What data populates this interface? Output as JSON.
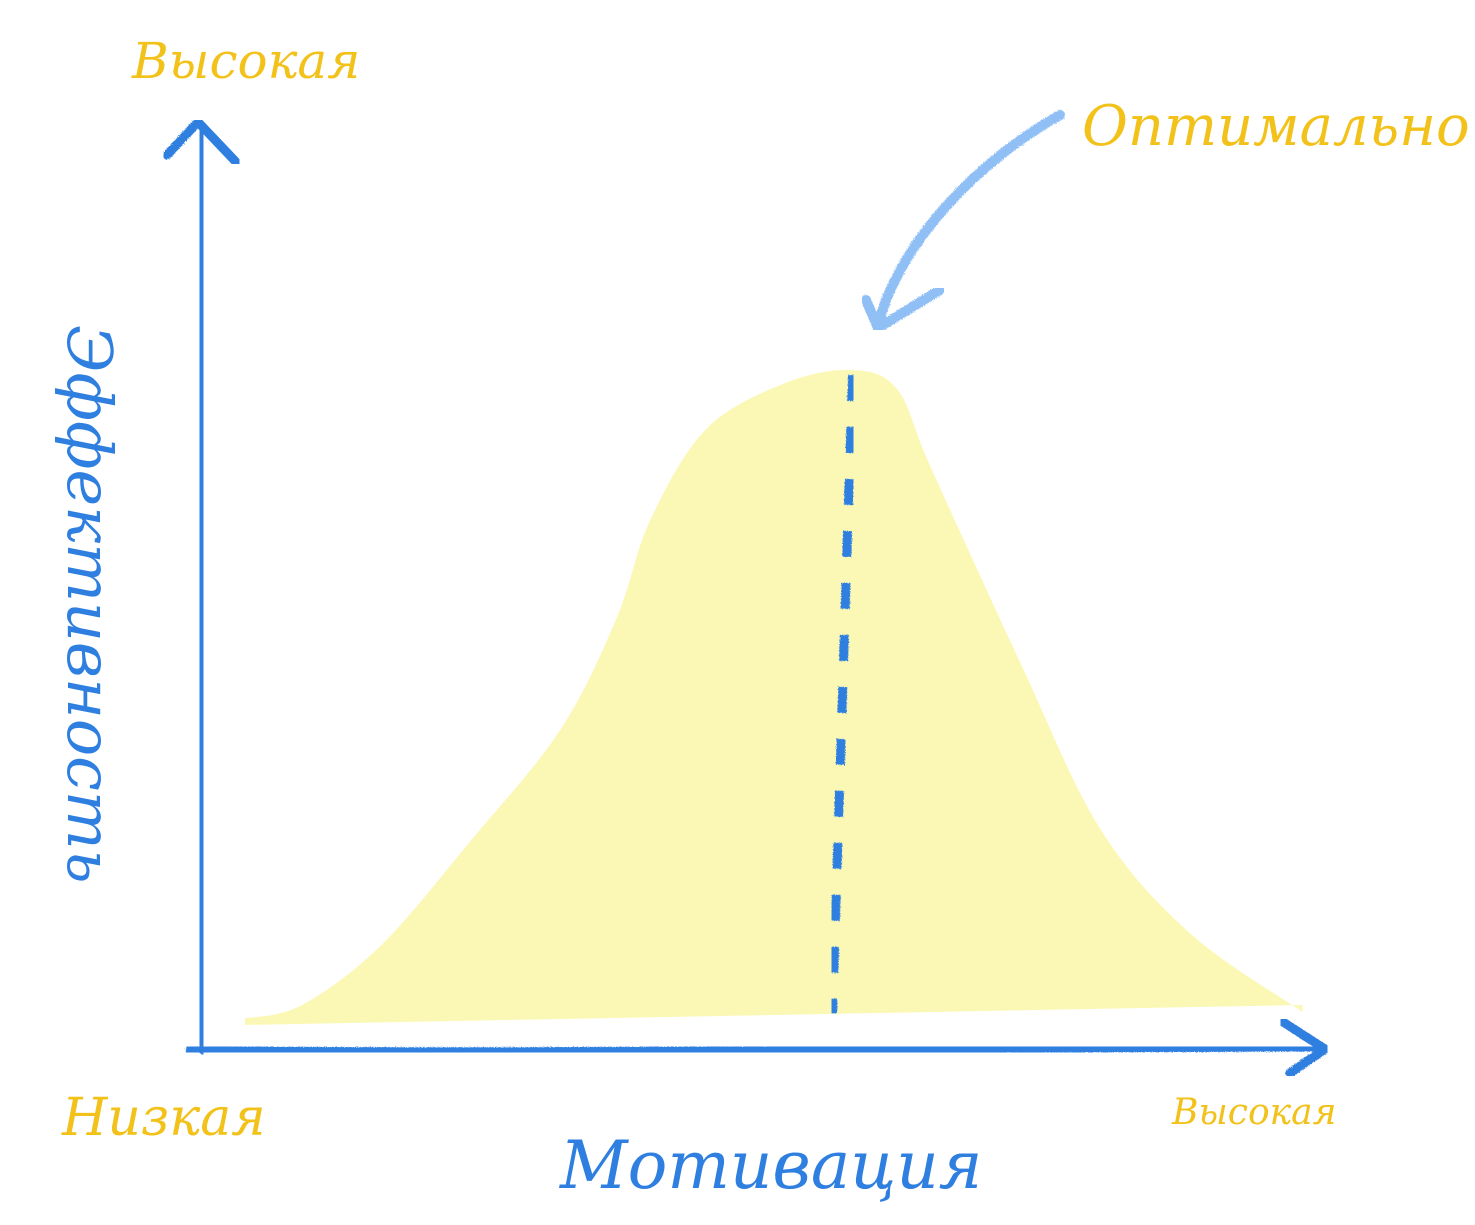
{
  "chart_data": {
    "type": "area",
    "xlabel": "Мотивация",
    "ylabel": "Эффективность",
    "x_low_label": "Низкая",
    "x_high_label": "Высокая",
    "y_high_label": "Высокая",
    "annotation": "Оптимально",
    "grid": false,
    "xlim": [
      0,
      100
    ],
    "ylim": [
      0,
      100
    ],
    "x": [
      4,
      9,
      16,
      24,
      32,
      37,
      40,
      45,
      52,
      58,
      62,
      65,
      73,
      80,
      88,
      98
    ],
    "values": [
      1,
      3,
      12,
      28,
      45,
      62,
      77,
      91,
      98,
      100,
      97,
      85,
      55,
      30,
      14,
      2
    ],
    "optimum_x": 58,
    "colors": {
      "axis": "#2f7fe0",
      "fill": "#fbf8b6",
      "label_yellow": "#f2c21b",
      "label_blue": "#2f7fe0",
      "arrow": "#8fbff5"
    }
  }
}
